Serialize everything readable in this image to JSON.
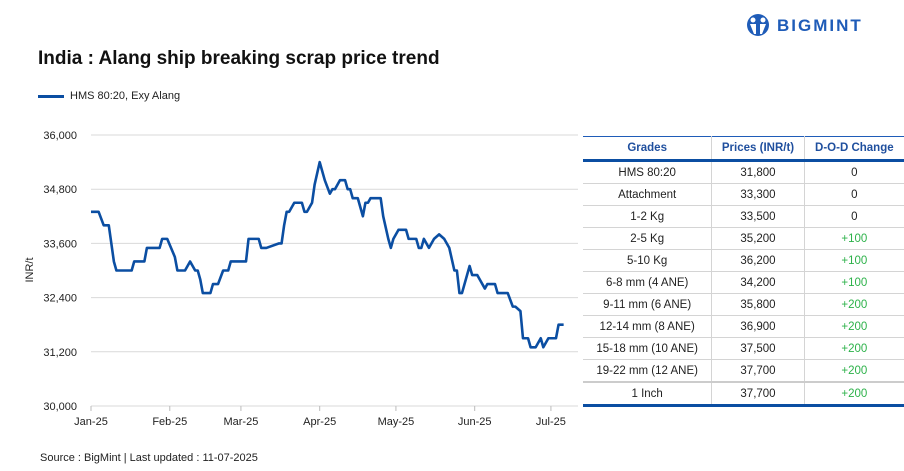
{
  "header": {
    "title": "India : Alang ship breaking scrap price trend",
    "logo_text": "BIGMINT",
    "brand_color": "#1f5cb8"
  },
  "footer": {
    "source": "Source : BigMint | Last updated : 11-07-2025"
  },
  "chart_data": {
    "type": "line",
    "title": "India : Alang ship breaking scrap price trend",
    "ylabel": "INR/t",
    "xlabel": "",
    "ylim": [
      30000,
      36000
    ],
    "yticks": [
      "36,000",
      "34,800",
      "33,600",
      "32,400",
      "31,200",
      "30,000"
    ],
    "ytick_values": [
      36000,
      34800,
      33600,
      32400,
      31200,
      30000
    ],
    "xticks": [
      "Jan-25",
      "Feb-25",
      "Mar-25",
      "Apr-25",
      "May-25",
      "Jun-25",
      "Jul-25"
    ],
    "xtick_dates": [
      "2025-01-01",
      "2025-02-01",
      "2025-03-01",
      "2025-04-01",
      "2025-05-01",
      "2025-06-01",
      "2025-07-01"
    ],
    "grid": "horizontal",
    "legend": "top-left",
    "series": [
      {
        "name": "HMS 80:20, Exy Alang",
        "color": "#0b4ea2",
        "points": [
          [
            "2025-01-01",
            34300
          ],
          [
            "2025-01-04",
            34300
          ],
          [
            "2025-01-06",
            34000
          ],
          [
            "2025-01-08",
            34000
          ],
          [
            "2025-01-10",
            33200
          ],
          [
            "2025-01-11",
            33000
          ],
          [
            "2025-01-17",
            33000
          ],
          [
            "2025-01-18",
            33200
          ],
          [
            "2025-01-22",
            33200
          ],
          [
            "2025-01-23",
            33500
          ],
          [
            "2025-01-28",
            33500
          ],
          [
            "2025-01-29",
            33700
          ],
          [
            "2025-01-31",
            33700
          ],
          [
            "2025-02-03",
            33300
          ],
          [
            "2025-02-04",
            33000
          ],
          [
            "2025-02-07",
            33000
          ],
          [
            "2025-02-09",
            33200
          ],
          [
            "2025-02-11",
            33000
          ],
          [
            "2025-02-12",
            33000
          ],
          [
            "2025-02-13",
            32800
          ],
          [
            "2025-02-14",
            32500
          ],
          [
            "2025-02-17",
            32500
          ],
          [
            "2025-02-18",
            32700
          ],
          [
            "2025-02-20",
            32700
          ],
          [
            "2025-02-22",
            33000
          ],
          [
            "2025-02-24",
            33000
          ],
          [
            "2025-02-25",
            33200
          ],
          [
            "2025-03-03",
            33200
          ],
          [
            "2025-03-04",
            33700
          ],
          [
            "2025-03-08",
            33700
          ],
          [
            "2025-03-09",
            33500
          ],
          [
            "2025-03-11",
            33500
          ],
          [
            "2025-03-16",
            33600
          ],
          [
            "2025-03-17",
            33600
          ],
          [
            "2025-03-18",
            34000
          ],
          [
            "2025-03-19",
            34300
          ],
          [
            "2025-03-20",
            34300
          ],
          [
            "2025-03-22",
            34500
          ],
          [
            "2025-03-25",
            34500
          ],
          [
            "2025-03-26",
            34300
          ],
          [
            "2025-03-27",
            34300
          ],
          [
            "2025-03-29",
            34500
          ],
          [
            "2025-03-30",
            34900
          ],
          [
            "2025-04-01",
            35400
          ],
          [
            "2025-04-03",
            35000
          ],
          [
            "2025-04-05",
            34700
          ],
          [
            "2025-04-06",
            34800
          ],
          [
            "2025-04-07",
            34800
          ],
          [
            "2025-04-09",
            35000
          ],
          [
            "2025-04-11",
            35000
          ],
          [
            "2025-04-12",
            34800
          ],
          [
            "2025-04-13",
            34800
          ],
          [
            "2025-04-14",
            34600
          ],
          [
            "2025-04-16",
            34600
          ],
          [
            "2025-04-17",
            34400
          ],
          [
            "2025-04-18",
            34200
          ],
          [
            "2025-04-19",
            34500
          ],
          [
            "2025-04-20",
            34500
          ],
          [
            "2025-04-21",
            34600
          ],
          [
            "2025-04-25",
            34600
          ],
          [
            "2025-04-26",
            34200
          ],
          [
            "2025-04-28",
            33700
          ],
          [
            "2025-04-29",
            33500
          ],
          [
            "2025-04-30",
            33700
          ],
          [
            "2025-05-02",
            33900
          ],
          [
            "2025-05-05",
            33900
          ],
          [
            "2025-05-06",
            33700
          ],
          [
            "2025-05-09",
            33700
          ],
          [
            "2025-05-10",
            33500
          ],
          [
            "2025-05-11",
            33500
          ],
          [
            "2025-05-12",
            33700
          ],
          [
            "2025-05-14",
            33500
          ],
          [
            "2025-05-16",
            33700
          ],
          [
            "2025-05-18",
            33800
          ],
          [
            "2025-05-20",
            33700
          ],
          [
            "2025-05-21",
            33600
          ],
          [
            "2025-05-22",
            33500
          ],
          [
            "2025-05-24",
            33000
          ],
          [
            "2025-05-25",
            33000
          ],
          [
            "2025-05-26",
            32500
          ],
          [
            "2025-05-27",
            32500
          ],
          [
            "2025-05-29",
            32900
          ],
          [
            "2025-05-30",
            33100
          ],
          [
            "2025-05-31",
            32900
          ],
          [
            "2025-06-02",
            32900
          ],
          [
            "2025-06-05",
            32600
          ],
          [
            "2025-06-06",
            32700
          ],
          [
            "2025-06-09",
            32700
          ],
          [
            "2025-06-10",
            32500
          ],
          [
            "2025-06-14",
            32500
          ],
          [
            "2025-06-16",
            32200
          ],
          [
            "2025-06-17",
            32200
          ],
          [
            "2025-06-19",
            32100
          ],
          [
            "2025-06-20",
            31500
          ],
          [
            "2025-06-22",
            31500
          ],
          [
            "2025-06-23",
            31300
          ],
          [
            "2025-06-25",
            31300
          ],
          [
            "2025-06-27",
            31500
          ],
          [
            "2025-06-28",
            31300
          ],
          [
            "2025-06-30",
            31500
          ],
          [
            "2025-07-03",
            31500
          ],
          [
            "2025-07-04",
            31800
          ],
          [
            "2025-07-06",
            31800
          ]
        ]
      }
    ]
  },
  "table": {
    "headers": [
      "Grades",
      "Prices (INR/t)",
      "D-O-D Change"
    ],
    "positive_color": "#2db24a",
    "rows": [
      [
        "HMS 80:20",
        "31,800",
        "0"
      ],
      [
        "Attachment",
        "33,300",
        "0"
      ],
      [
        "1-2 Kg",
        "33,500",
        "0"
      ],
      [
        "2-5 Kg",
        "35,200",
        "+100"
      ],
      [
        "5-10 Kg",
        "36,200",
        "+100"
      ],
      [
        "6-8 mm (4 ANE)",
        "34,200",
        "+100"
      ],
      [
        "9-11 mm (6 ANE)",
        "35,800",
        "+200"
      ],
      [
        "12-14 mm (8 ANE)",
        "36,900",
        "+200"
      ],
      [
        "15-18 mm (10 ANE)",
        "37,500",
        "+200"
      ],
      [
        "19-22 mm (12 ANE)",
        "37,700",
        "+200"
      ],
      [
        "1 Inch",
        "37,700",
        "+200"
      ]
    ]
  }
}
